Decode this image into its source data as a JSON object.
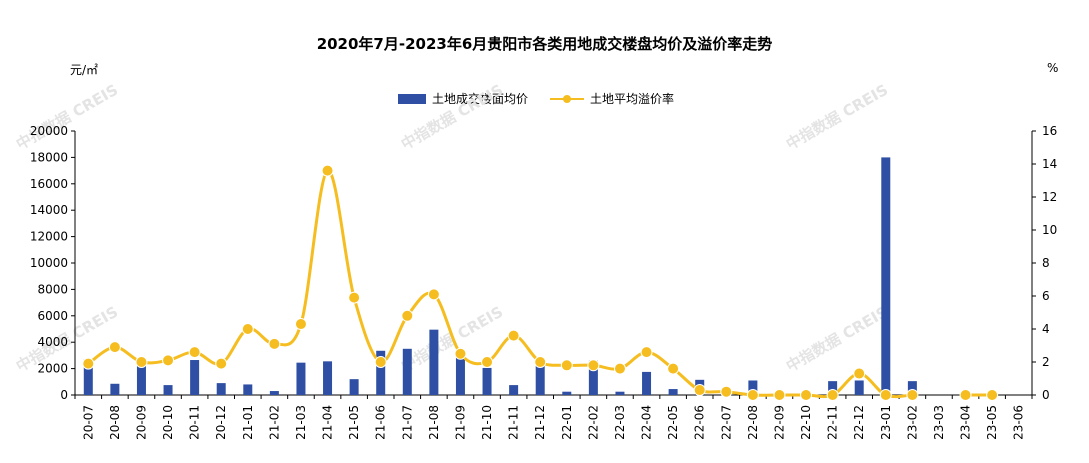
{
  "title": "2020年7月-2023年6月贵阳市各类用地成交楼盘均价及溢价率走势",
  "unit_left": "元/㎡",
  "unit_right": "%",
  "watermark": "中指数据 CREIS",
  "colors": {
    "bar": "#2e4fa3",
    "line": "#f5bd1f",
    "axis": "#000000"
  },
  "legend": {
    "bar_label": "土地成交楼面均价",
    "line_label": "土地平均溢价率"
  },
  "chart_data": {
    "type": "bar",
    "title": "2020年7月-2023年6月贵阳市各类用地成交楼盘均价及溢价率走势",
    "categories": [
      "20-07",
      "20-08",
      "20-09",
      "20-10",
      "20-11",
      "20-12",
      "21-01",
      "21-02",
      "21-03",
      "21-04",
      "21-05",
      "21-06",
      "21-07",
      "21-08",
      "21-09",
      "21-10",
      "21-11",
      "21-12",
      "22-01",
      "22-02",
      "22-03",
      "22-04",
      "22-05",
      "22-06",
      "22-07",
      "22-08",
      "22-09",
      "22-10",
      "22-11",
      "22-12",
      "23-01",
      "23-02",
      "23-03",
      "23-04",
      "23-05",
      "23-06"
    ],
    "ylim": [
      0,
      20000
    ],
    "y2lim": [
      0,
      16
    ],
    "yticks": [
      "0",
      "2000",
      "4000",
      "6000",
      "8000",
      "10000",
      "12000",
      "14000",
      "16000",
      "18000",
      "20000"
    ],
    "y2ticks": [
      "0",
      "2",
      "4",
      "6",
      "8",
      "10",
      "12",
      "14",
      "16"
    ],
    "legend_position": "top",
    "series": [
      {
        "name": "土地成交楼面均价",
        "type": "bar",
        "axis": "left",
        "values": [
          2700,
          850,
          2500,
          750,
          2650,
          900,
          800,
          300,
          2450,
          2550,
          1200,
          3350,
          3500,
          4950,
          3050,
          2050,
          750,
          2200,
          250,
          2600,
          250,
          1750,
          450,
          1150,
          250,
          1100,
          0,
          0,
          1050,
          1100,
          18000,
          1050,
          0,
          0,
          0,
          0
        ]
      },
      {
        "name": "土地平均溢价率",
        "type": "line",
        "axis": "right",
        "values": [
          1.9,
          2.9,
          2.0,
          2.1,
          2.6,
          1.9,
          4.0,
          3.1,
          4.3,
          13.6,
          5.9,
          2.0,
          4.8,
          6.1,
          2.5,
          2.0,
          3.6,
          2.0,
          1.8,
          1.8,
          1.6,
          2.6,
          1.6,
          0.3,
          0.2,
          0,
          0,
          0,
          0,
          1.3,
          0,
          0,
          null,
          0,
          0,
          null
        ]
      }
    ]
  }
}
